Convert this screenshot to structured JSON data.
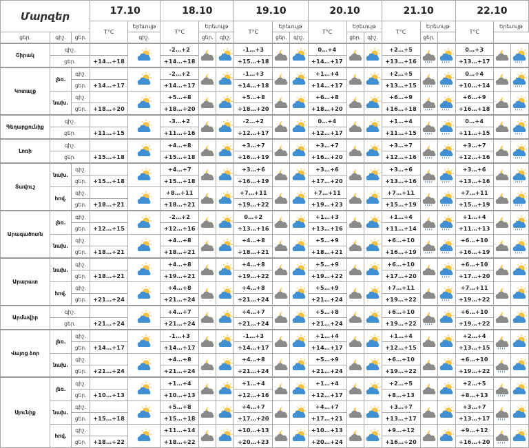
{
  "header": {
    "regions_label": "Մարզեր",
    "temp_label": "T°C",
    "phenomenon_label": "Երեւույթ",
    "night_label": "գիշ.",
    "day_label": "ցեր."
  },
  "dates": [
    "17.10",
    "18.10",
    "19.10",
    "20.10",
    "21.10",
    "22.10"
  ],
  "colors": {
    "cloud_day": "#3f8fd2",
    "cloud_night": "#8a8a8a",
    "sun": "#f5c242",
    "rain": "#5a7fb0",
    "border": "#a8a8a8"
  },
  "regions": [
    {
      "name": "Շիրակ",
      "areas": [
        {
          "zone": "",
          "night": [
            "",
            "-2…+2",
            "-1…+3",
            "0…+4",
            "+2…+5",
            "0…+3"
          ],
          "day": [
            "+14…+18",
            "+14…+18",
            "+15…+18",
            "+14…+17",
            "+13…+16",
            "+13…+17"
          ],
          "icons": [
            [
              "partly-cloudy-day"
            ],
            [
              "cloudy-night",
              "partly-cloudy-day"
            ],
            [
              "cloudy-night",
              "partly-cloudy-day"
            ],
            [
              "cloudy-night",
              "partly-cloudy-day"
            ],
            [
              "rain-night",
              "rain-day"
            ],
            [
              "cloudy-night",
              "rain-day"
            ]
          ]
        }
      ]
    },
    {
      "name": "Կոտայք",
      "areas": [
        {
          "zone": "լեռ.",
          "night": [
            "",
            "-2…+2",
            "-1…+3",
            "+1…+4",
            "+2…+5",
            "0…+4"
          ],
          "day": [
            "+14…+17",
            "+14…+17",
            "+14…+18",
            "+14…+17",
            "+13…+15",
            "+10…+14"
          ],
          "icons": [
            [
              "partly-cloudy-day"
            ],
            [
              "cloudy-night",
              "partly-cloudy-day"
            ],
            [
              "cloudy-night",
              "partly-cloudy-day"
            ],
            [
              "cloudy-night",
              "partly-cloudy-day"
            ],
            [
              "rain-night",
              "rain-day"
            ],
            [
              "cloudy-night",
              "rain-day"
            ]
          ]
        },
        {
          "zone": "նախ.",
          "night": [
            "",
            "+5…+8",
            "+5…+8",
            "+6…+8",
            "+6…+9",
            "+6…+9"
          ],
          "day": [
            "+18…+20",
            "+18…+20",
            "+18…+20",
            "+18…+20",
            "+16…+18",
            "+16…+18"
          ],
          "icons": [
            [
              "partly-cloudy-day"
            ],
            [
              "cloudy-night",
              "partly-cloudy-day"
            ],
            [
              "cloudy-night",
              "partly-cloudy-day"
            ],
            [
              "cloudy-night",
              "partly-cloudy-day"
            ],
            [
              "rain-night",
              "rain-day"
            ],
            [
              "cloudy-night",
              "rain-day"
            ]
          ]
        }
      ]
    },
    {
      "name": "Գեղարքունիք",
      "areas": [
        {
          "zone": "",
          "night": [
            "",
            "-3…+2",
            "-2…+2",
            "0…+4",
            "+1…+4",
            "0…+4"
          ],
          "day": [
            "+11…+15",
            "+11…+16",
            "+12…+17",
            "+12…+17",
            "+11…+15",
            "+11…+15"
          ],
          "icons": [
            [
              "partly-cloudy-day"
            ],
            [
              "cloudy-night",
              "partly-cloudy-day"
            ],
            [
              "cloudy-night",
              "partly-cloudy-day"
            ],
            [
              "cloudy-night",
              "partly-cloudy-day"
            ],
            [
              "rain-night",
              "rain-day"
            ],
            [
              "cloudy-night",
              "rain-day"
            ]
          ]
        }
      ]
    },
    {
      "name": "Լոռի",
      "areas": [
        {
          "zone": "",
          "night": [
            "",
            "+4…+8",
            "+3…+7",
            "+3…+7",
            "+3…+7",
            "+3…+7"
          ],
          "day": [
            "+15…+18",
            "+15…+18",
            "+16…+19",
            "+16…+20",
            "+12…+16",
            "+12…+16"
          ],
          "icons": [
            [
              "partly-cloudy-day"
            ],
            [
              "cloudy-night",
              "partly-cloudy-day"
            ],
            [
              "cloudy-night",
              "partly-cloudy-day"
            ],
            [
              "cloudy-night",
              "partly-cloudy-day"
            ],
            [
              "rain-night",
              "rain-day"
            ],
            [
              "cloudy-night",
              "rain-day"
            ]
          ]
        }
      ]
    },
    {
      "name": "Տավուշ",
      "areas": [
        {
          "zone": "նախ.",
          "night": [
            "",
            "+4…+7",
            "+3…+6",
            "+3…+6",
            "+3…+6",
            "+3…+6"
          ],
          "day": [
            "+15…+18",
            "+15…+18",
            "+16…+19",
            "+17…+20",
            "+13…+16",
            "+13…+16"
          ],
          "icons": [
            [
              "partly-cloudy-day"
            ],
            [
              "cloudy-night",
              "partly-cloudy-day"
            ],
            [
              "cloudy-night",
              "partly-cloudy-day"
            ],
            [
              "cloudy-night",
              "partly-cloudy-day"
            ],
            [
              "rain-night",
              "rain-day"
            ],
            [
              "cloudy-night",
              "rain-day"
            ]
          ]
        },
        {
          "zone": "հով.",
          "night": [
            "",
            "+8…+11",
            "+7…+11",
            "+7…+11",
            "+7…+11",
            "+7…+11"
          ],
          "day": [
            "+18…+21",
            "+18…+21",
            "+19…+22",
            "+19…+23",
            "+15…+19",
            "+15…+19"
          ],
          "icons": [
            [
              "partly-cloudy-day"
            ],
            [
              "cloudy-night",
              "partly-cloudy-day"
            ],
            [
              "cloudy-night",
              "partly-cloudy-day"
            ],
            [
              "cloudy-night",
              "partly-cloudy-day"
            ],
            [
              "rain-night",
              "rain-day"
            ],
            [
              "cloudy-night",
              "rain-day"
            ]
          ]
        }
      ]
    },
    {
      "name": "Արագածոտն",
      "areas": [
        {
          "zone": "լեռ.",
          "night": [
            "",
            "-2…+2",
            "0…+2",
            "+1…+3",
            "+1…+4",
            "+1…+4"
          ],
          "day": [
            "+12…+15",
            "+12…+16",
            "+13…+16",
            "+13…+16",
            "+11…+14",
            "+11…+13"
          ],
          "icons": [
            [
              "partly-cloudy-day"
            ],
            [
              "cloudy-night",
              "partly-cloudy-day"
            ],
            [
              "cloudy-night",
              "partly-cloudy-day"
            ],
            [
              "cloudy-night",
              "partly-cloudy-day"
            ],
            [
              "rain-night",
              "rain-day"
            ],
            [
              "cloudy-night",
              "rain-day"
            ]
          ]
        },
        {
          "zone": "նախ.",
          "night": [
            "",
            "+4…+8",
            "+4…+8",
            "+5…+9",
            "+6…+10",
            "+6…+10"
          ],
          "day": [
            "+18…+21",
            "+18…+21",
            "+18…+21",
            "+18…+21",
            "+16…+19",
            "+16…+19"
          ],
          "icons": [
            [
              "partly-cloudy-day"
            ],
            [
              "cloudy-night",
              "partly-cloudy-day"
            ],
            [
              "cloudy-night",
              "partly-cloudy-day"
            ],
            [
              "cloudy-night",
              "partly-cloudy-day"
            ],
            [
              "rain-night",
              "rain-day"
            ],
            [
              "cloudy-night",
              "rain-day"
            ]
          ]
        }
      ]
    },
    {
      "name": "Արարատ",
      "areas": [
        {
          "zone": "նախ.",
          "night": [
            "",
            "+4…+8",
            "+4…+8",
            "+5…+9",
            "+6…+10",
            "+6…+10"
          ],
          "day": [
            "+18…+21",
            "+19…+21",
            "+19…+22",
            "+19…+22",
            "+17…+20",
            "+17…+20"
          ],
          "icons": [
            [
              "partly-cloudy-day"
            ],
            [
              "cloudy-night",
              "partly-cloudy-day"
            ],
            [
              "cloudy-night",
              "partly-cloudy-day"
            ],
            [
              "cloudy-night",
              "partly-cloudy-day"
            ],
            [
              "cloudy-night",
              "rain-day"
            ],
            [
              "cloudy-night",
              "partly-cloudy-day"
            ]
          ]
        },
        {
          "zone": "հով.",
          "night": [
            "",
            "+4…+8",
            "+4…+8",
            "+5…+9",
            "+7…+11",
            "+7…+11"
          ],
          "day": [
            "+21…+24",
            "+21…+24",
            "+21…+24",
            "+21…+24",
            "+19…+22",
            "+19…+22"
          ],
          "icons": [
            [
              "partly-cloudy-day"
            ],
            [
              "cloudy-night",
              "partly-cloudy-day"
            ],
            [
              "cloudy-night",
              "partly-cloudy-day"
            ],
            [
              "cloudy-night",
              "partly-cloudy-day"
            ],
            [
              "cloudy-night",
              "rain-day"
            ],
            [
              "cloudy-night",
              "partly-cloudy-day"
            ]
          ]
        }
      ]
    },
    {
      "name": "Արմավիր",
      "areas": [
        {
          "zone": "",
          "night": [
            "",
            "+4…+7",
            "+4…+7",
            "+5…+8",
            "+6…+10",
            "+6…+10"
          ],
          "day": [
            "+21…+24",
            "+21…+24",
            "+21…+24",
            "+21…+24",
            "+19…+22",
            "+19…+22"
          ],
          "icons": [
            [
              "partly-cloudy-day"
            ],
            [
              "cloudy-night",
              "partly-cloudy-day"
            ],
            [
              "cloudy-night",
              "partly-cloudy-day"
            ],
            [
              "cloudy-night",
              "partly-cloudy-day"
            ],
            [
              "rain-night",
              "partly-cloudy-day"
            ],
            [
              "cloudy-night",
              "partly-cloudy-day"
            ]
          ]
        }
      ]
    },
    {
      "name": "Վայոց ձոր",
      "areas": [
        {
          "zone": "լեռ.",
          "night": [
            "",
            "-1…+3",
            "-1…+3",
            "+1…+4",
            "+1…+4",
            "+2…+4"
          ],
          "day": [
            "+14…+17",
            "+14…+17",
            "+14…+17",
            "+14…+17",
            "+12…+15",
            "+13…+15"
          ],
          "icons": [
            [
              "partly-cloudy-day"
            ],
            [
              "cloudy-night",
              "partly-cloudy-day"
            ],
            [
              "cloudy-night",
              "partly-cloudy-day"
            ],
            [
              "cloudy-night",
              "partly-cloudy-day"
            ],
            [
              "cloudy-night",
              "partly-cloudy-day"
            ],
            [
              "rain-night",
              "partly-cloudy-day"
            ]
          ]
        },
        {
          "zone": "նախ.",
          "night": [
            "",
            "+4…+8",
            "+4…+8",
            "+5…+9",
            "+6…+10",
            "+6…+10"
          ],
          "day": [
            "+21…+24",
            "+21…+24",
            "+21…+24",
            "+21…+24",
            "+19…+22",
            "+19…+22"
          ],
          "icons": [
            [
              "partly-cloudy-day"
            ],
            [
              "cloudy-night",
              "partly-cloudy-day"
            ],
            [
              "cloudy-night",
              "partly-cloudy-day"
            ],
            [
              "cloudy-night",
              "partly-cloudy-day"
            ],
            [
              "cloudy-night",
              "partly-cloudy-day"
            ],
            [
              "rain-night",
              "partly-cloudy-day"
            ]
          ]
        }
      ]
    },
    {
      "name": "Սյունիք",
      "areas": [
        {
          "zone": "լեռ.",
          "night": [
            "",
            "+1…+4",
            "+1…+4",
            "+1…+4",
            "+2…+5",
            "+2…+5"
          ],
          "day": [
            "+10…+13",
            "+10…+13",
            "+12…+16",
            "+12…+17",
            "+8…+13",
            "+8…+13"
          ],
          "icons": [
            [
              "partly-cloudy-day"
            ],
            [
              "cloudy-night",
              "partly-cloudy-day"
            ],
            [
              "cloudy-night",
              "partly-cloudy-day"
            ],
            [
              "cloudy-night",
              "partly-cloudy-day"
            ],
            [
              "cloudy-night",
              "partly-cloudy-day"
            ],
            [
              "rain-night",
              "partly-cloudy-day"
            ]
          ]
        },
        {
          "zone": "նախ.",
          "night": [
            "",
            "+5…+8",
            "+4…+7",
            "+4…+7",
            "+3…+7",
            "+3…+7"
          ],
          "day": [
            "+15…+18",
            "+15…+18",
            "+17…+20",
            "+17…+21",
            "+13…+17",
            "+13…+17"
          ],
          "icons": [
            [
              "partly-cloudy-day"
            ],
            [
              "cloudy-night",
              "partly-cloudy-day"
            ],
            [
              "cloudy-night",
              "partly-cloudy-day"
            ],
            [
              "cloudy-night",
              "partly-cloudy-day"
            ],
            [
              "cloudy-night",
              "partly-cloudy-day"
            ],
            [
              "rain-night",
              "partly-cloudy-day"
            ]
          ]
        },
        {
          "zone": "հով.",
          "night": [
            "",
            "+11…+14",
            "+10…+13",
            "+10…+13",
            "+9…+12",
            "+9…+12"
          ],
          "day": [
            "+18…+22",
            "+18…+22",
            "+20…+23",
            "+20…+24",
            "+16…+20",
            "+16…+20"
          ],
          "icons": [
            [
              "partly-cloudy-day"
            ],
            [
              "cloudy-night",
              "partly-cloudy-day"
            ],
            [
              "cloudy-night",
              "partly-cloudy-day"
            ],
            [
              "cloudy-night",
              "partly-cloudy-day"
            ],
            [
              "cloudy-night",
              "partly-cloudy-day"
            ],
            [
              "rain-night",
              "partly-cloudy-day"
            ]
          ]
        }
      ]
    }
  ]
}
